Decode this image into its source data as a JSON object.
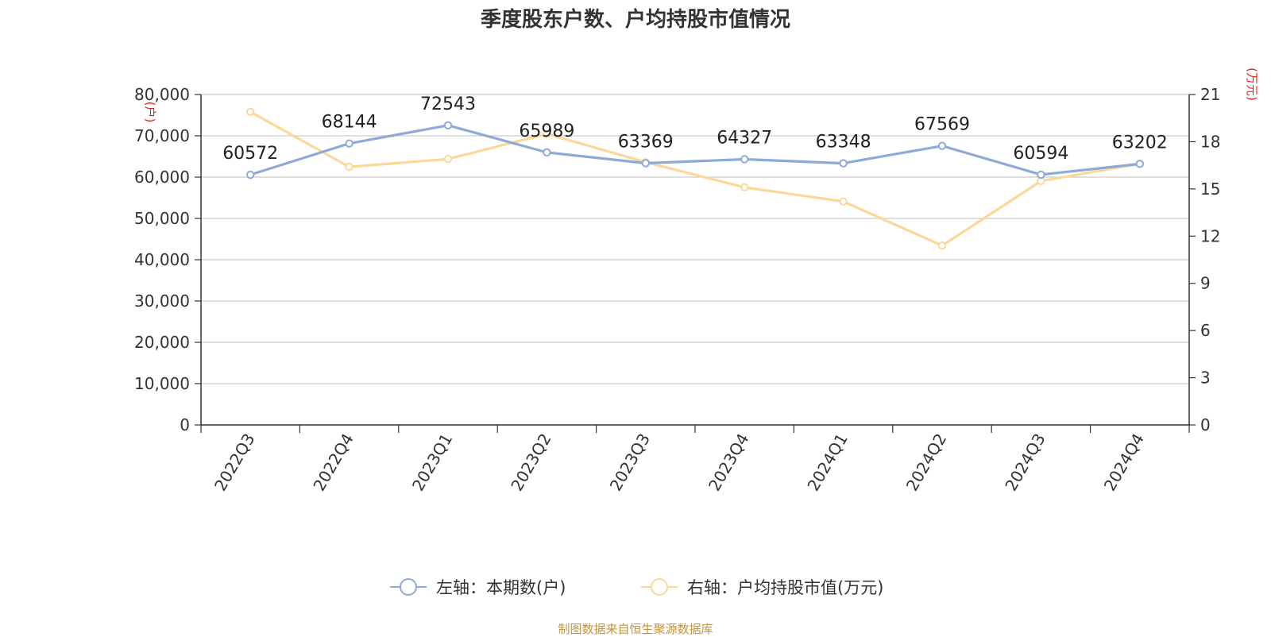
{
  "title": "季度股东户数、户均持股市值情况",
  "source": "制图数据来自恒生聚源数据库",
  "colors": {
    "left_series": "#8eaad8",
    "right_series": "#fcd898",
    "unit_label": "#e8201a",
    "source_text": "#c8923a"
  },
  "chart_data": {
    "type": "line",
    "title": "季度股东户数、户均持股市值情况",
    "categories": [
      "2022Q3",
      "2022Q4",
      "2023Q1",
      "2023Q2",
      "2023Q3",
      "2023Q4",
      "2024Q1",
      "2024Q2",
      "2024Q3",
      "2024Q4"
    ],
    "left_axis": {
      "unit": "(户)",
      "ylim": [
        0,
        80000
      ],
      "ticks": [
        "0",
        "10,000",
        "20,000",
        "30,000",
        "40,000",
        "50,000",
        "60,000",
        "70,000",
        "80,000"
      ]
    },
    "right_axis": {
      "unit": "(万元)",
      "ylim": [
        0,
        21
      ],
      "ticks": [
        "0",
        "3",
        "6",
        "9",
        "12",
        "15",
        "18",
        "21"
      ]
    },
    "series": [
      {
        "name": "左轴：本期数(户)",
        "axis": "left",
        "values": [
          60572,
          68144,
          72543,
          65989,
          63369,
          64327,
          63348,
          67569,
          60594,
          63202
        ],
        "data_labels": [
          "60572",
          "68144",
          "72543",
          "65989",
          "63369",
          "64327",
          "63348",
          "67569",
          "60594",
          "63202"
        ]
      },
      {
        "name": "右轴：户均持股市值(万元)",
        "axis": "right",
        "values": [
          19.9,
          16.4,
          16.9,
          18.5,
          16.7,
          15.1,
          14.2,
          11.4,
          15.5,
          16.6
        ]
      }
    ],
    "grid": true,
    "legend_position": "bottom-center"
  }
}
